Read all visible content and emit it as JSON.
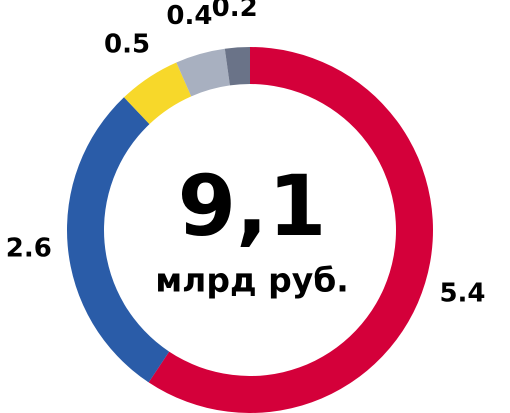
{
  "chart_data": {
    "type": "donut",
    "center_text": "9,1",
    "center_subtext": "млрд руб.",
    "values": [
      5.4,
      2.6,
      0.5,
      0.4,
      0.2
    ],
    "colors": [
      "#d4003a",
      "#2a5ca8",
      "#f7d82a",
      "#a8b0c0",
      "#6a7388"
    ]
  }
}
